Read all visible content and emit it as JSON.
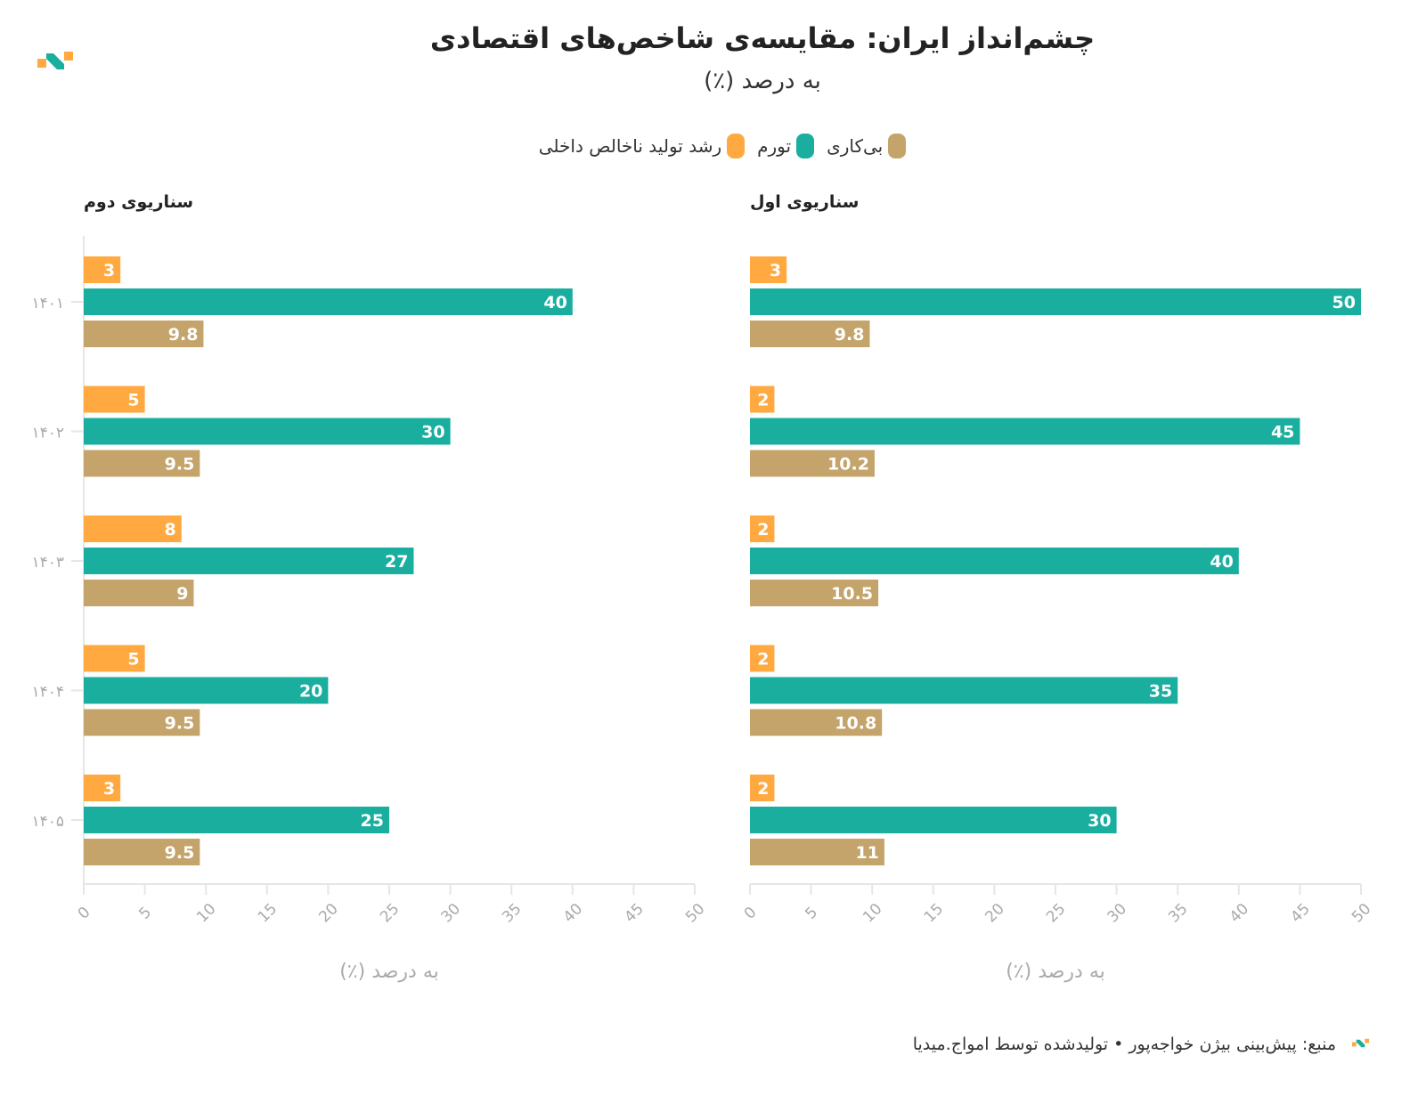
{
  "header": {
    "title": "چشم‌انداز ایران: مقایسه‌ی شاخص‌های اقتصادی",
    "subtitle": "به درصد (٪)"
  },
  "legend": [
    {
      "label": "بی‌کاری",
      "color": "#C4A46B"
    },
    {
      "label": "تورم",
      "color": "#1AAE9F"
    },
    {
      "label": "رشد تولید ناخالص داخلی",
      "color": "#FFA940"
    }
  ],
  "footer": {
    "text": "منبع: پیش‌بینی بیژن خواجه‌پور • تولیدشده توسط امواج.میدیا"
  },
  "chart_data": [
    {
      "type": "bar",
      "orientation": "horizontal",
      "title": "سناریوی اول",
      "categories": [
        "۱۴۰۱",
        "۱۴۰۲",
        "۱۴۰۳",
        "۱۴۰۴",
        "۱۴۰۵"
      ],
      "series": [
        {
          "name": "رشد تولید ناخالص داخلی",
          "color": "#FFA940",
          "values": [
            3,
            2,
            2,
            2,
            2
          ]
        },
        {
          "name": "تورم",
          "color": "#1AAE9F",
          "values": [
            50,
            45,
            40,
            35,
            30
          ]
        },
        {
          "name": "بی‌کاری",
          "color": "#C4A46B",
          "values": [
            9.8,
            10.2,
            10.5,
            10.8,
            11
          ]
        }
      ],
      "xlabel": "به درصد (٪)",
      "xlim": [
        0,
        50
      ],
      "xticks": [
        0,
        5,
        10,
        15,
        20,
        25,
        30,
        35,
        40,
        45,
        50
      ],
      "show_category_labels": false
    },
    {
      "type": "bar",
      "orientation": "horizontal",
      "title": "سناریوی دوم",
      "categories": [
        "۱۴۰۱",
        "۱۴۰۲",
        "۱۴۰۳",
        "۱۴۰۴",
        "۱۴۰۵"
      ],
      "series": [
        {
          "name": "رشد تولید ناخالص داخلی",
          "color": "#FFA940",
          "values": [
            3,
            5,
            8,
            5,
            3
          ]
        },
        {
          "name": "تورم",
          "color": "#1AAE9F",
          "values": [
            40,
            30,
            27,
            20,
            25
          ]
        },
        {
          "name": "بی‌کاری",
          "color": "#C4A46B",
          "values": [
            9.8,
            9.5,
            9,
            9.5,
            9.5
          ]
        }
      ],
      "xlabel": "به درصد (٪)",
      "xlim": [
        0,
        50
      ],
      "xticks": [
        0,
        5,
        10,
        15,
        20,
        25,
        30,
        35,
        40,
        45,
        50
      ],
      "show_category_labels": true
    }
  ]
}
